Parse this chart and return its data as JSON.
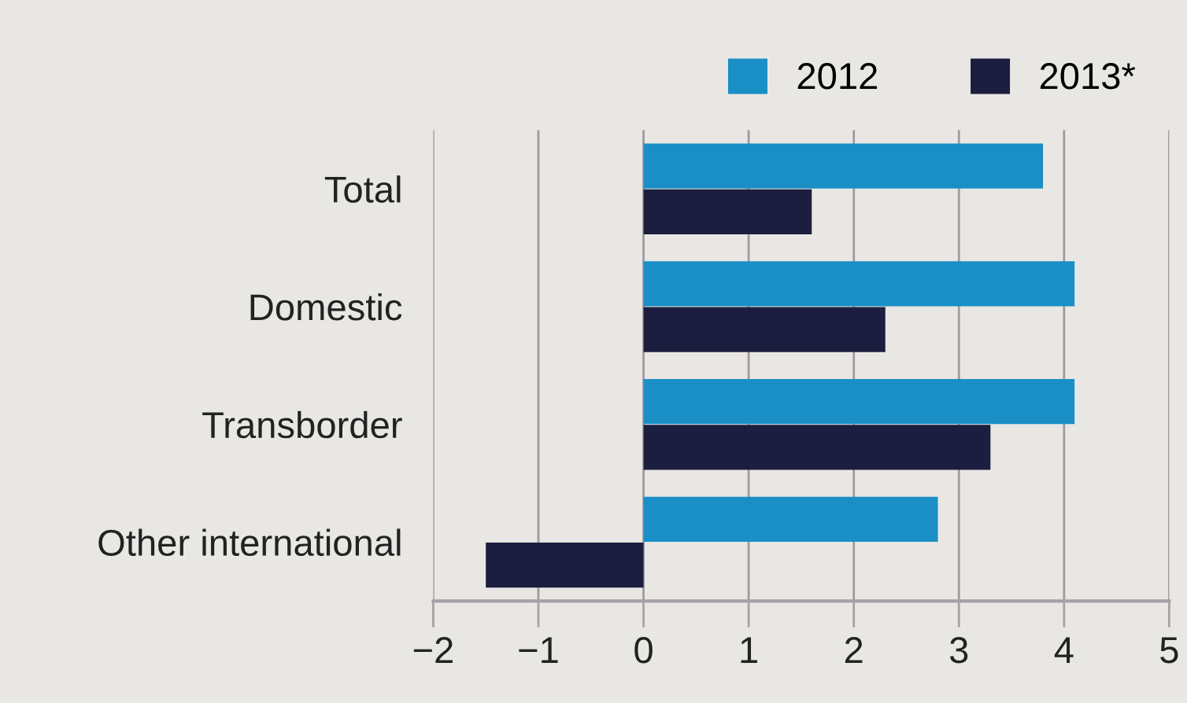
{
  "chart_data": {
    "type": "bar",
    "orientation": "horizontal",
    "categories": [
      "Total",
      "Domestic",
      "Transborder",
      "Other international"
    ],
    "series": [
      {
        "name": "2012",
        "color": "#1a8fc6",
        "values": [
          3.8,
          4.1,
          4.1,
          2.8
        ]
      },
      {
        "name": "2013*",
        "color": "#1b1e3f",
        "values": [
          1.6,
          2.3,
          3.3,
          -1.5
        ]
      }
    ],
    "xlim": [
      -2,
      5
    ],
    "xticks": [
      -2,
      -1,
      0,
      1,
      2,
      3,
      4,
      5
    ],
    "grid": "x",
    "legend": "top"
  }
}
